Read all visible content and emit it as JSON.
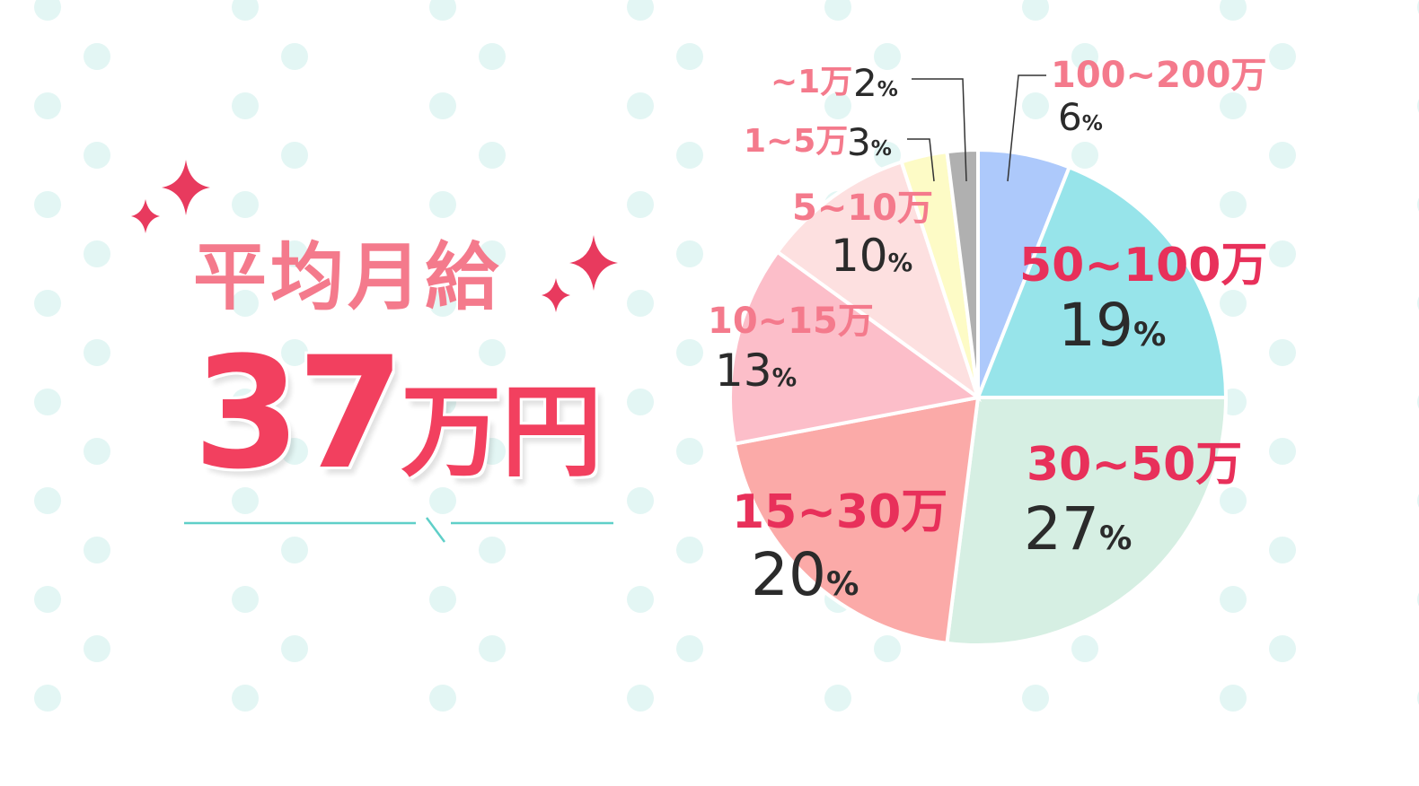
{
  "headline": {
    "title": "平均月給",
    "value": "37",
    "unit": "万円"
  },
  "colors": {
    "accent": "#e8305a",
    "label_light": "#f47a8c",
    "dot": "#e3f6f4",
    "divider": "#5fcfc8"
  },
  "chart_data": {
    "type": "pie",
    "start": "top",
    "direction": "clockwise",
    "percent_suffix": "%",
    "series": [
      {
        "label": "100~200万",
        "value": 6,
        "color": "#adc9fb"
      },
      {
        "label": "50~100万",
        "value": 19,
        "color": "#97e4ea"
      },
      {
        "label": "30~50万",
        "value": 27,
        "color": "#d6efe3"
      },
      {
        "label": "15~30万",
        "value": 20,
        "color": "#fbaaa8"
      },
      {
        "label": "10~15万",
        "value": 13,
        "color": "#fcbec9"
      },
      {
        "label": "5~10万",
        "value": 10,
        "color": "#fde0e0"
      },
      {
        "label": "1~5万",
        "value": 3,
        "color": "#fdfbc6"
      },
      {
        "label": "~1万",
        "value": 2,
        "color": "#b0b0b0"
      }
    ]
  }
}
